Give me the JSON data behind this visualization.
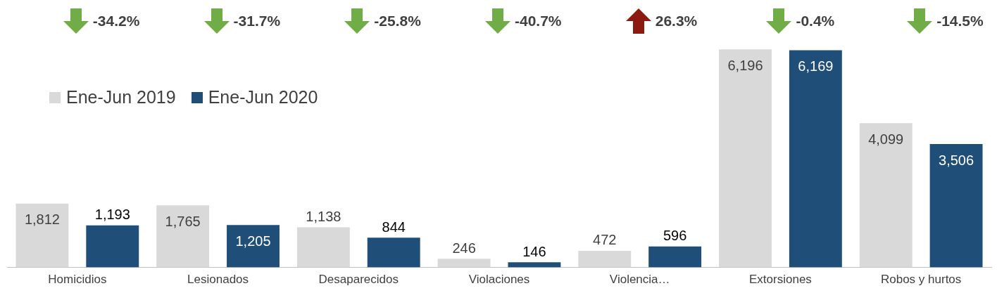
{
  "chart_data": {
    "type": "bar",
    "categories": [
      "Homicidios",
      "Lesionados",
      "Desaparecidos",
      "Violaciones",
      "Violencia…",
      "Extorsiones",
      "Robos y hurtos"
    ],
    "series": [
      {
        "name": "Ene-Jun 2019",
        "color": "#d9d9d9",
        "values": [
          1812,
          1765,
          1138,
          246,
          472,
          6196,
          4099
        ],
        "value_labels": [
          "1,812",
          "1,765",
          "1,138",
          "246",
          "472",
          "6,196",
          "4,099"
        ]
      },
      {
        "name": "Ene-Jun 2020",
        "color": "#1f4e79",
        "values": [
          1193,
          1205,
          844,
          146,
          596,
          6169,
          3506
        ],
        "value_labels": [
          "1,193",
          "1,205",
          "844",
          "146",
          "596",
          "6,169",
          "3,506"
        ]
      }
    ],
    "legend": "top left",
    "grid": false,
    "tick_labels": "x",
    "annotations": [
      "-34.2%",
      "-31.7%",
      "-25.8%",
      "-40.7%",
      "26.3%",
      "-0.4%",
      "-14.5%"
    ]
  }
}
